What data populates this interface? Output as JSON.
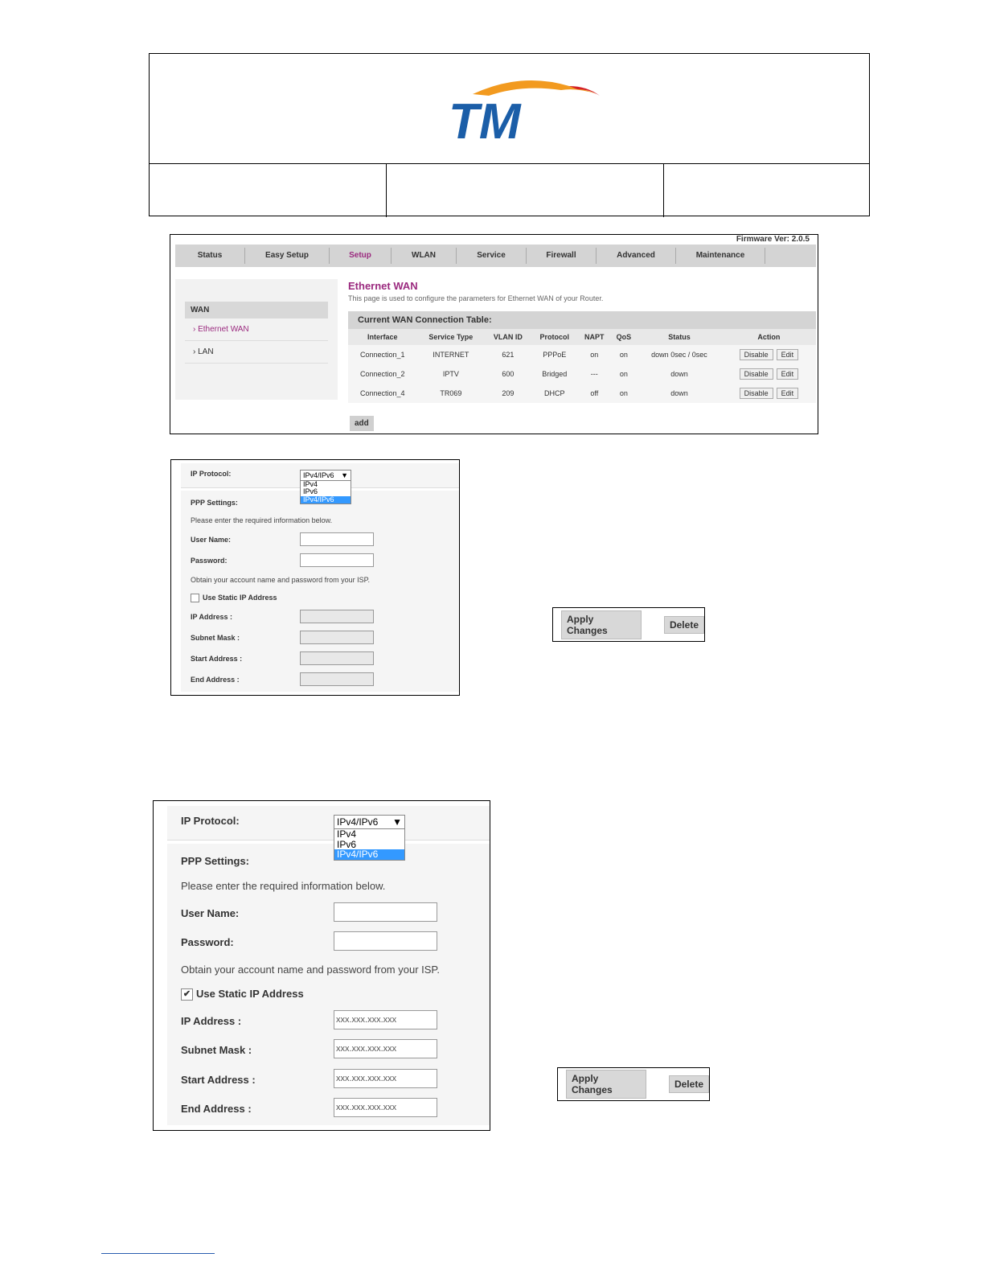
{
  "logo_text": "TM",
  "colors": {
    "brand_blue": "#1b5ea8",
    "brand_orange": "#f29a1f",
    "brand_red": "#d42027",
    "accent_purple": "#9b2a7f",
    "selected_blue": "#3399ff"
  },
  "router": {
    "firmware": "Firmware Ver: 2.0.5",
    "nav": [
      "Status",
      "Easy Setup",
      "Setup",
      "WLAN",
      "Service",
      "Firewall",
      "Advanced",
      "Maintenance"
    ],
    "active_nav": "Setup",
    "sidebar": {
      "section": "WAN",
      "items": [
        "Ethernet WAN",
        "LAN"
      ]
    },
    "title": "Ethernet WAN",
    "description": "This page is used to configure the parameters for Ethernet WAN of your Router.",
    "table_title": "Current WAN Connection Table:",
    "columns": [
      "Interface",
      "Service Type",
      "VLAN ID",
      "Protocol",
      "NAPT",
      "QoS",
      "Status",
      "Action"
    ],
    "rows": [
      [
        "Connection_1",
        "INTERNET",
        "621",
        "PPPoE",
        "on",
        "on",
        "down 0sec / 0sec"
      ],
      [
        "Connection_2",
        "IPTV",
        "600",
        "Bridged",
        "---",
        "on",
        "down"
      ],
      [
        "Connection_4",
        "TR069",
        "209",
        "DHCP",
        "off",
        "on",
        "down"
      ]
    ],
    "disable_label": "Disable",
    "edit_label": "Edit",
    "add_label": "add"
  },
  "form": {
    "ip_protocol_label": "IP Protocol:",
    "ip_protocol_value": "IPv4/IPv6",
    "ip_protocol_options": [
      "IPv4",
      "IPv6",
      "IPv4/IPv6"
    ],
    "ppp_settings": "PPP Settings:",
    "ppp_hint": "Please enter the required information below.",
    "user_name": "User Name:",
    "password": "Password:",
    "isp_hint": "Obtain your account name and password from your ISP.",
    "static_ip": "Use Static IP Address",
    "ip_address": "IP Address :",
    "subnet_mask": "Subnet Mask :",
    "start_address": "Start Address :",
    "end_address": "End Address :",
    "ip_placeholder": "xxx.xxx.xxx.xxx"
  },
  "actions": {
    "apply": "Apply Changes",
    "delete": "Delete"
  }
}
